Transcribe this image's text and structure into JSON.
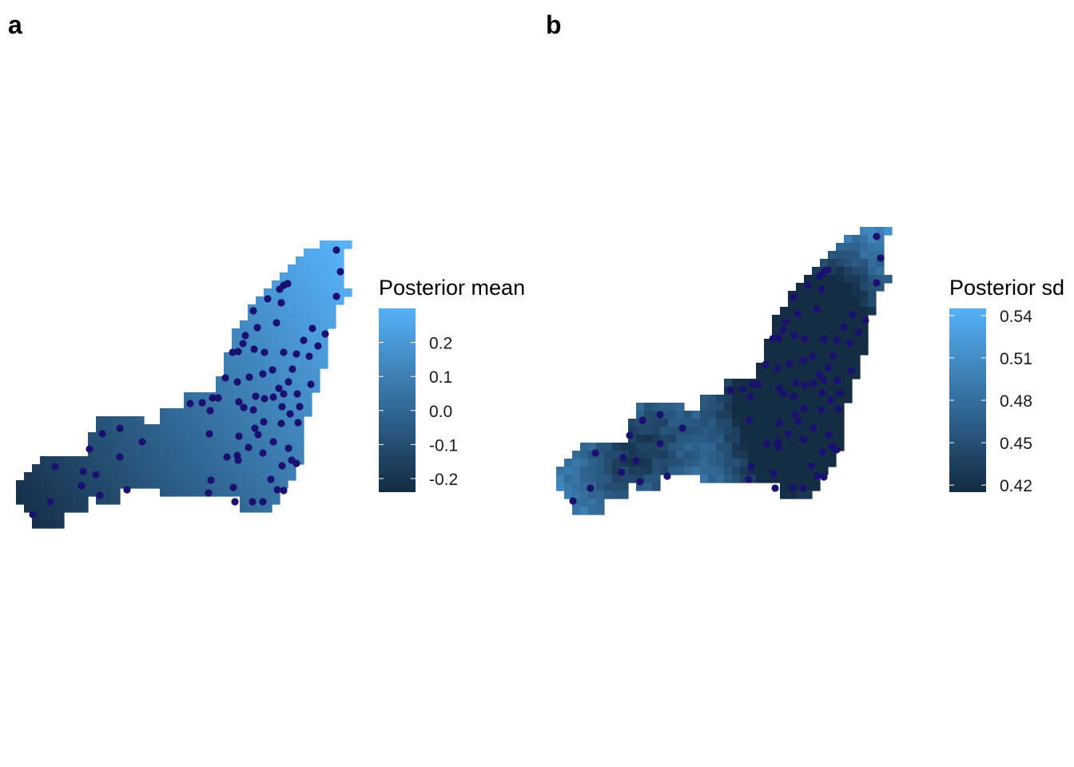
{
  "panels": [
    {
      "tag": "a",
      "legend": {
        "title": "Posterior mean",
        "min": -0.24,
        "max": 0.3,
        "ticks": [
          0.2,
          0.1,
          0.0,
          -0.1,
          -0.2
        ],
        "tick_labels": [
          "0.2",
          "0.1",
          "0.0",
          "-0.1",
          "-0.2"
        ]
      },
      "field_description": "Low in the south-west lobe, rising toward the north-east tip",
      "color_low": "#132b43",
      "color_high": "#56b1f7"
    },
    {
      "tag": "b",
      "legend": {
        "title": "Posterior sd",
        "min": 0.415,
        "max": 0.545,
        "ticks": [
          0.54,
          0.51,
          0.48,
          0.45,
          0.42
        ],
        "tick_labels": [
          "0.54",
          "0.51",
          "0.48",
          "0.45",
          "0.42"
        ]
      },
      "field_description": "Lowest in the densely sampled interior, highest at the outer edges",
      "color_low": "#132b43",
      "color_high": "#56b1f7"
    }
  ],
  "observation_point_color": "#1a1070"
}
